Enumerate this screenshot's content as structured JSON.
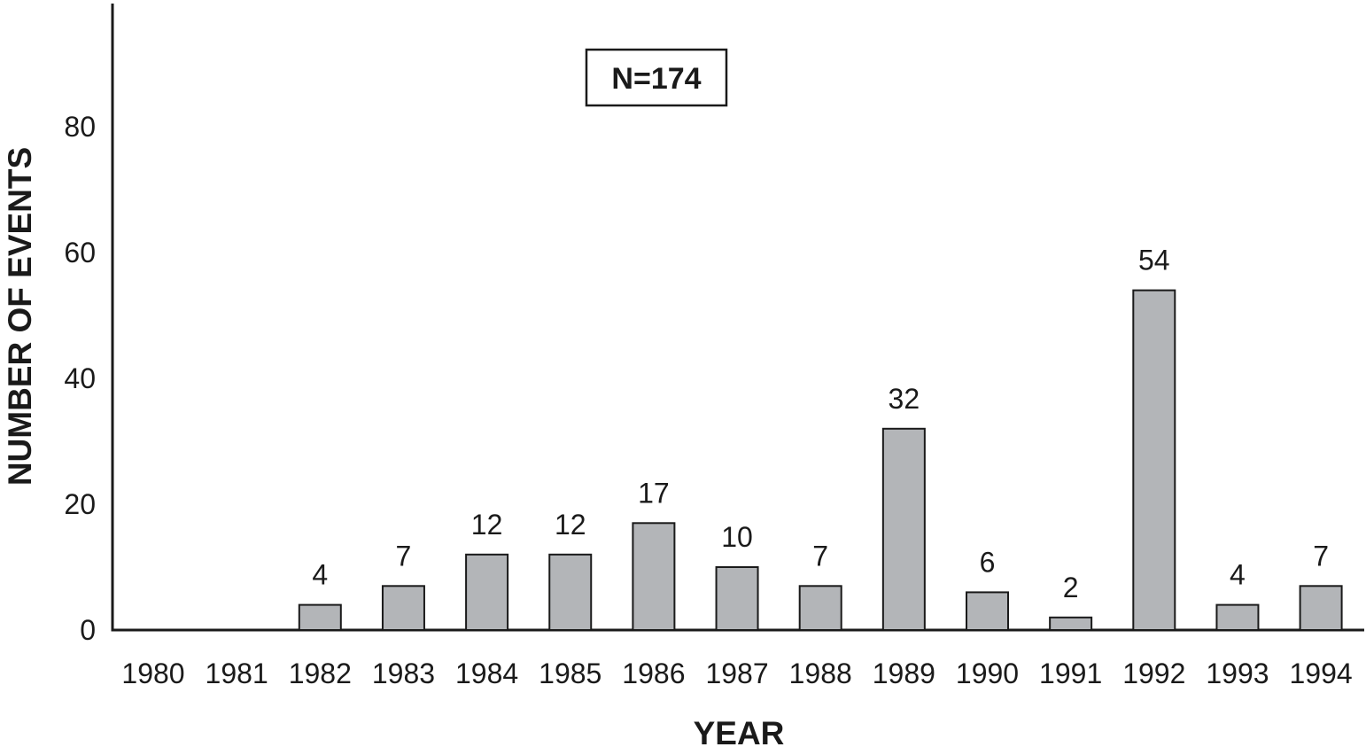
{
  "chart_data": {
    "type": "bar",
    "title": "",
    "annotation": "N=174",
    "xlabel": "YEAR",
    "ylabel": "NUMBER OF EVENTS",
    "categories": [
      "1980",
      "1981",
      "1982",
      "1983",
      "1984",
      "1985",
      "1986",
      "1987",
      "1988",
      "1989",
      "1990",
      "1991",
      "1992",
      "1993",
      "1994"
    ],
    "values": [
      0,
      0,
      4,
      7,
      12,
      12,
      17,
      10,
      7,
      32,
      6,
      2,
      54,
      4,
      7
    ],
    "data_labels": [
      "",
      "",
      "4",
      "7",
      "12",
      "12",
      "17",
      "10",
      "7",
      "32",
      "6",
      "2",
      "54",
      "4",
      "7"
    ],
    "yticks": [
      0,
      20,
      40,
      60,
      80
    ],
    "ylim": [
      0,
      100
    ],
    "grid": false,
    "bar_color": "#b3b5b8",
    "bar_edge_color": "#1a1a1a"
  }
}
